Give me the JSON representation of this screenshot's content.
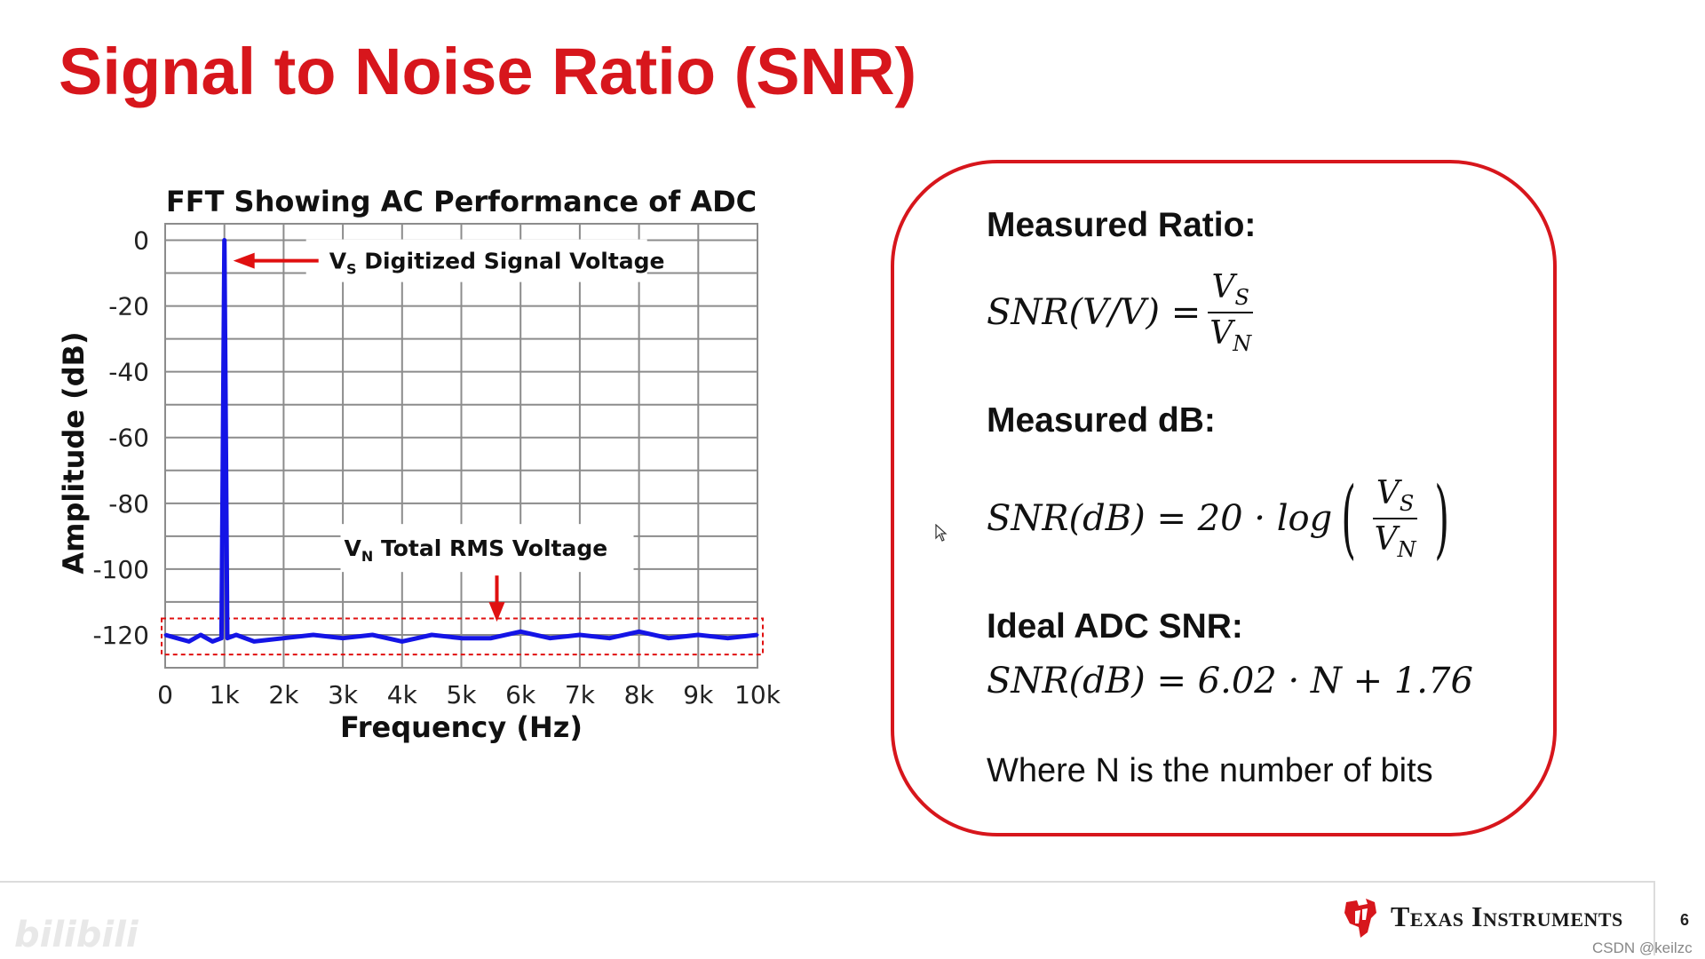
{
  "slide": {
    "title": "Signal to Noise Ratio (SNR)",
    "page_number": "6"
  },
  "colors": {
    "title": "#d7161c",
    "box_border": "#d7161c",
    "trace": "#1414e6",
    "annotation": "#e01010",
    "grid": "#8c8c8c"
  },
  "chart_data": {
    "type": "line",
    "title": "FFT Showing AC Performance of ADC",
    "xlabel": "Frequency (Hz)",
    "ylabel": "Amplitude (dB)",
    "xlim": [
      0,
      10000
    ],
    "ylim": [
      -130,
      5
    ],
    "grid": true,
    "x_ticks": [
      0,
      1000,
      2000,
      3000,
      4000,
      5000,
      6000,
      7000,
      8000,
      9000,
      10000
    ],
    "x_tick_labels": [
      "0",
      "1k",
      "2k",
      "3k",
      "4k",
      "5k",
      "6k",
      "7k",
      "8k",
      "9k",
      "10k"
    ],
    "y_ticks": [
      0,
      -20,
      -40,
      -60,
      -80,
      -100,
      -120
    ],
    "y_tick_labels": [
      "0",
      "-20",
      "-40",
      "-60",
      "-80",
      "-100",
      "-120"
    ],
    "series": [
      {
        "values_description": "spectrum",
        "x": [
          0,
          200,
          400,
          600,
          800,
          950,
          1000,
          1050,
          1200,
          1500,
          2000,
          2500,
          3000,
          3500,
          4000,
          4500,
          5000,
          5500,
          6000,
          6500,
          7000,
          7500,
          8000,
          8500,
          9000,
          9500,
          10000
        ],
        "y": [
          -120,
          -121,
          -122,
          -120,
          -122,
          -121,
          0,
          -121,
          -120,
          -122,
          -121,
          -120,
          -121,
          -120,
          -122,
          -120,
          -121,
          -121,
          -119,
          -121,
          -120,
          -121,
          -119,
          -121,
          -120,
          -121,
          -120
        ]
      }
    ],
    "annotations": [
      {
        "label_main": "V",
        "label_sub": "S",
        "label_rest": " Digitized Signal Voltage",
        "points_to_x": 1000,
        "points_to_y": -3
      },
      {
        "label_main": "V",
        "label_sub": "N",
        "label_rest": " Total RMS Voltage",
        "points_to_x": 5600,
        "points_to_y": -116
      }
    ],
    "noise_band": [
      -115,
      -126
    ]
  },
  "formulas": {
    "measured_ratio_heading": "Measured Ratio:",
    "ratio_lhs": "SNR(V/V) =",
    "measured_db_heading": "Measured dB:",
    "db_lhs": "SNR(dB) = 20 · log",
    "ideal_heading": "Ideal ADC SNR:",
    "ideal_formula": "SNR(dB) = 6.02 · N + 1.76",
    "note": "Where N is the number of bits",
    "vs_main": "V",
    "vs_sub": "S",
    "vn_main": "V",
    "vn_sub": "N"
  },
  "footer": {
    "company": "Texas Instruments",
    "watermark": "CSDN @keilzc",
    "video_watermark": "bilibili"
  },
  "icons": {
    "logo": "ti-logo-icon",
    "cursor": "mouse-pointer-icon"
  }
}
